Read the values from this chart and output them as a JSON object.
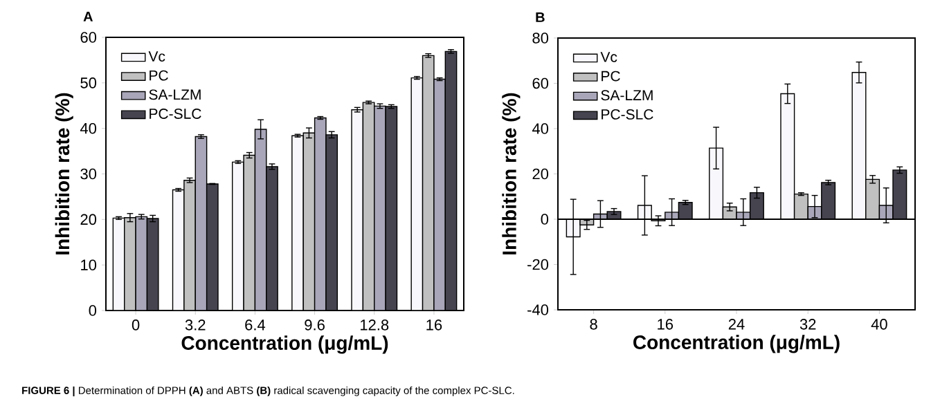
{
  "chart_data": [
    {
      "type": "bar",
      "xlabel": "Concentration (μg/mL)",
      "ylabel": "Inhibition rate (%)",
      "annotations": [
        "A",
        "**FIGURE 6 |** Determination of DPPH **(A)** and ABTS **(B)** radical scavenging capacity of the complex PC-SLC."
      ],
      "categories": [
        "0",
        "3.2",
        "6.4",
        "9.6",
        "12.8",
        "16"
      ],
      "series": [
        {
          "name": "Vc",
          "color": "#f8f8fc",
          "values": [
            20.3,
            26.5,
            32.6,
            38.4,
            44.1,
            51.1
          ],
          "errors": [
            0.3,
            0.3,
            0.3,
            0.3,
            0.5,
            0.3
          ]
        },
        {
          "name": "PC",
          "color": "#c0c0c0",
          "values": [
            20.4,
            28.6,
            34.1,
            39.0,
            45.7,
            56.0
          ],
          "errors": [
            0.9,
            0.5,
            0.6,
            1.1,
            0.3,
            0.4
          ]
        },
        {
          "name": "SA-LZM",
          "color": "#a8a6b8",
          "values": [
            20.6,
            38.2,
            39.8,
            42.3,
            44.9,
            50.8
          ],
          "errors": [
            0.5,
            0.4,
            2.1,
            0.3,
            0.5,
            0.3
          ]
        },
        {
          "name": "PC-SLC",
          "color": "#46444f",
          "values": [
            20.2,
            27.8,
            31.6,
            38.6,
            44.8,
            56.9
          ],
          "errors": [
            0.7,
            0.1,
            0.6,
            0.7,
            0.4,
            0.4
          ]
        }
      ],
      "ylim": [
        0,
        60
      ],
      "yticks": [
        0,
        10,
        20,
        30,
        40,
        50,
        60
      ],
      "legend": "top left"
    },
    {
      "type": "bar",
      "xlabel": "Concentration (μg/mL)",
      "ylabel": "Inhibition rate (%)",
      "annotations": [
        "B"
      ],
      "categories": [
        "8",
        "16",
        "24",
        "32",
        "40"
      ],
      "series": [
        {
          "name": "Vc",
          "color": "#f8f8fc",
          "values": [
            -7.8,
            6.1,
            31.4,
            55.4,
            64.8
          ],
          "errors": [
            16.6,
            13.1,
            9.2,
            4.3,
            4.6
          ]
        },
        {
          "name": "PC",
          "color": "#c0c0c0",
          "values": [
            -2.5,
            -0.7,
            5.4,
            11.1,
            17.6
          ],
          "errors": [
            2.0,
            2.2,
            1.7,
            0.6,
            1.7
          ]
        },
        {
          "name": "SA-LZM",
          "color": "#a8a6b8",
          "values": [
            2.3,
            3.1,
            3.1,
            5.6,
            6.1
          ],
          "errors": [
            5.9,
            5.9,
            5.9,
            4.9,
            7.7
          ]
        },
        {
          "name": "PC-SLC",
          "color": "#46444f",
          "values": [
            3.4,
            7.4,
            11.7,
            16.2,
            21.7
          ],
          "errors": [
            1.3,
            0.9,
            2.4,
            1.0,
            1.4
          ]
        }
      ],
      "ylim": [
        -40,
        80
      ],
      "yticks": [
        -40,
        -20,
        0,
        20,
        40,
        60,
        80
      ],
      "legend": "top left"
    }
  ]
}
